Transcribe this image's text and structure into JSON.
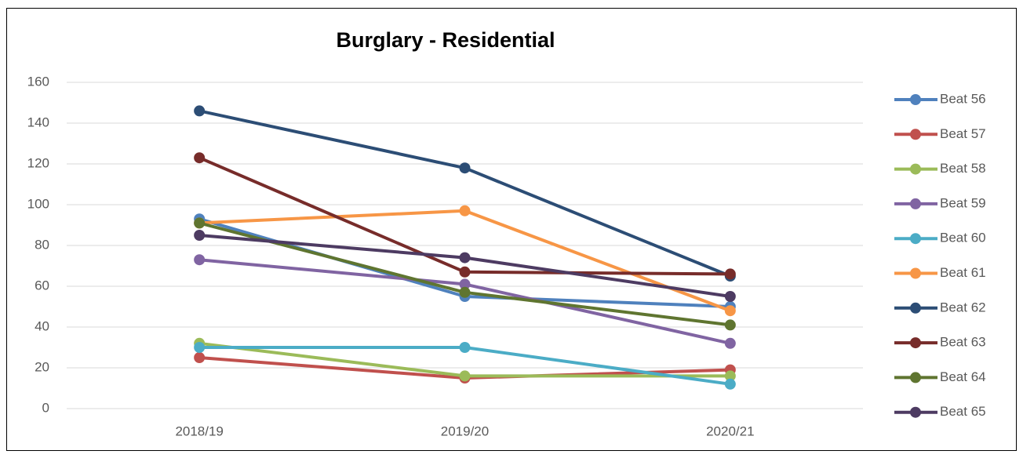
{
  "chart_data": {
    "type": "line",
    "title": "Burglary - Residential",
    "categories": [
      "2018/19",
      "2019/20",
      "2020/21"
    ],
    "series": [
      {
        "name": "Beat 56",
        "color": "#4f81bd",
        "values": [
          93,
          55,
          50
        ]
      },
      {
        "name": "Beat 57",
        "color": "#c0504d",
        "values": [
          25,
          15,
          19
        ]
      },
      {
        "name": "Beat 58",
        "color": "#9bbb59",
        "values": [
          32,
          16,
          16
        ]
      },
      {
        "name": "Beat 59",
        "color": "#8064a2",
        "values": [
          73,
          61,
          32
        ]
      },
      {
        "name": "Beat 60",
        "color": "#4bacc6",
        "values": [
          30,
          30,
          12
        ]
      },
      {
        "name": "Beat 61",
        "color": "#f79646",
        "values": [
          91,
          97,
          48
        ]
      },
      {
        "name": "Beat 62",
        "color": "#2c4d75",
        "values": [
          146,
          118,
          65
        ]
      },
      {
        "name": "Beat 63",
        "color": "#772c2a",
        "values": [
          123,
          67,
          66
        ]
      },
      {
        "name": "Beat 64",
        "color": "#5f7530",
        "values": [
          91,
          57,
          41
        ]
      },
      {
        "name": "Beat 65",
        "color": "#4d3b62",
        "values": [
          85,
          74,
          55
        ]
      }
    ],
    "ylim": [
      0,
      160
    ],
    "yticks": [
      0,
      20,
      40,
      60,
      80,
      100,
      120,
      140,
      160
    ],
    "grid": true,
    "legend": "right"
  }
}
